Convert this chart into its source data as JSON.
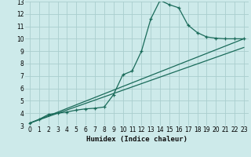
{
  "xlabel": "Humidex (Indice chaleur)",
  "bg_color": "#cdeaea",
  "grid_color": "#aacece",
  "line_color": "#1a6b5a",
  "xlim": [
    -0.5,
    23.5
  ],
  "ylim": [
    3,
    13
  ],
  "xticks": [
    0,
    1,
    2,
    3,
    4,
    5,
    6,
    7,
    8,
    9,
    10,
    11,
    12,
    13,
    14,
    15,
    16,
    17,
    18,
    19,
    20,
    21,
    22,
    23
  ],
  "yticks": [
    3,
    4,
    5,
    6,
    7,
    8,
    9,
    10,
    11,
    12,
    13
  ],
  "line1_x": [
    0,
    1,
    2,
    3,
    4,
    5,
    6,
    7,
    8,
    9,
    10,
    11,
    12,
    13,
    14,
    15,
    16,
    17,
    18,
    19,
    20,
    21,
    22,
    23
  ],
  "line1_y": [
    3.2,
    3.5,
    3.9,
    4.0,
    4.1,
    4.25,
    4.35,
    4.4,
    4.5,
    5.5,
    7.1,
    7.4,
    9.0,
    11.6,
    13.1,
    12.75,
    12.5,
    11.1,
    10.5,
    10.15,
    10.05,
    10.0,
    10.0,
    10.0
  ],
  "line2_x": [
    0,
    23
  ],
  "line2_y": [
    3.2,
    10.0
  ],
  "line3_x": [
    0,
    23
  ],
  "line3_y": [
    3.2,
    9.3
  ]
}
